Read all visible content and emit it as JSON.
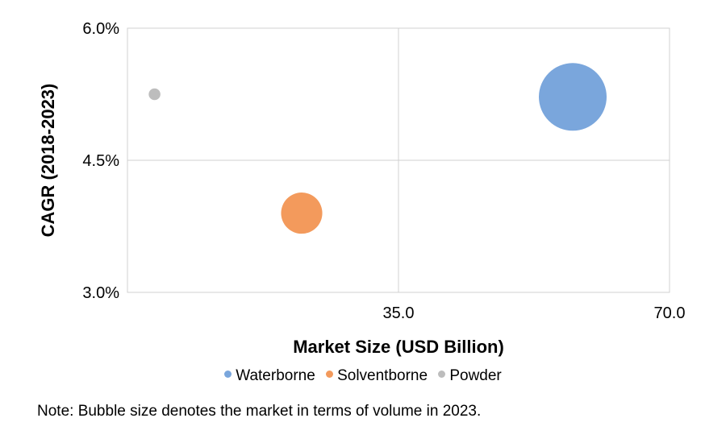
{
  "chart_data": {
    "type": "scatter",
    "xlabel": "Market Size (USD Billion)",
    "ylabel": "CAGR (2018-2023)",
    "xlim": [
      0,
      70
    ],
    "ylim": [
      3.0,
      6.0
    ],
    "x_ticks": [
      {
        "value": 35,
        "label": "35.0"
      },
      {
        "value": 70,
        "label": "70.0"
      }
    ],
    "y_ticks": [
      {
        "value": 3.0,
        "label": "3.0%"
      },
      {
        "value": 4.5,
        "label": "4.5%"
      },
      {
        "value": 6.0,
        "label": "6.0%"
      }
    ],
    "grid": true,
    "legend_position": "bottom",
    "series": [
      {
        "name": "Waterborne",
        "color": "#7aa6dc",
        "x": 57.5,
        "y": 5.22,
        "size": 100
      },
      {
        "name": "Solventborne",
        "color": "#f39a5c",
        "x": 22.5,
        "y": 3.9,
        "size": 37
      },
      {
        "name": "Powder",
        "color": "#bdbdbd",
        "x": 3.5,
        "y": 5.25,
        "size": 3
      }
    ]
  },
  "note": "Note: Bubble size denotes the market in terms of volume in 2023."
}
